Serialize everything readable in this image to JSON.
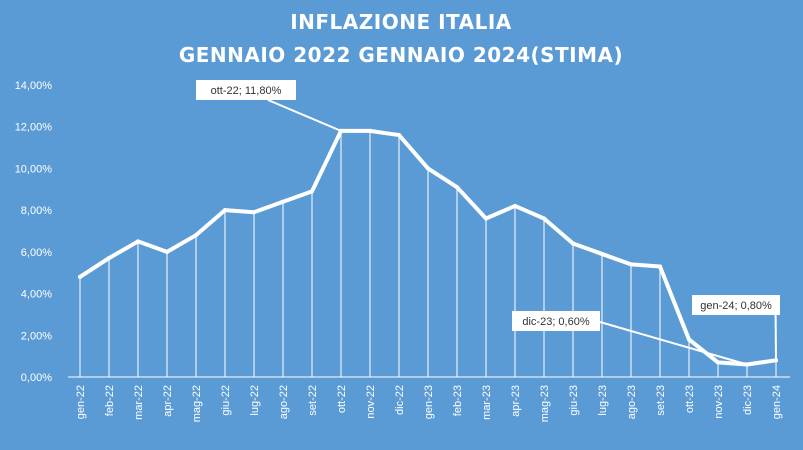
{
  "chart_data": {
    "type": "line",
    "title_lines": [
      "INFLAZIONE ITALIA",
      "GENNAIO 2022 GENNAIO 2024(STIMA)"
    ],
    "xlabel": "",
    "ylabel": "",
    "categories": [
      "gen-22",
      "feb-22",
      "mar-22",
      "apr-22",
      "mag-22",
      "giu-22",
      "lug-22",
      "ago-22",
      "set-22",
      "ott-22",
      "nov-22",
      "dic-22",
      "gen-23",
      "feb-23",
      "mar-23",
      "apr-23",
      "mag-23",
      "giu-23",
      "lug-23",
      "ago-23",
      "set-23",
      "ott-23",
      "nov-23",
      "dic-23",
      "gen-24"
    ],
    "values": [
      4.8,
      5.7,
      6.5,
      6.0,
      6.8,
      8.0,
      7.9,
      8.4,
      8.9,
      11.8,
      11.8,
      11.6,
      10.0,
      9.1,
      7.6,
      8.2,
      7.6,
      6.4,
      5.9,
      5.4,
      5.3,
      1.8,
      0.7,
      0.6,
      0.8
    ],
    "ylim": [
      0,
      14
    ],
    "yticks": [
      "0,00%",
      "2,00%",
      "4,00%",
      "6,00%",
      "8,00%",
      "10,00%",
      "12,00%",
      "14,00%"
    ],
    "grid": false,
    "drop_lines": true,
    "annotations": [
      {
        "text": "ott-22; 11,80%",
        "category": "ott-22"
      },
      {
        "text": "dic-23; 0,60%",
        "category": "dic-23"
      },
      {
        "text": "gen-24; 0,80%",
        "category": "gen-24"
      }
    ]
  },
  "colors": {
    "background": "#5b9bd5",
    "line": "#ffffff",
    "text": "#ffffff",
    "callout_text": "#333333"
  }
}
